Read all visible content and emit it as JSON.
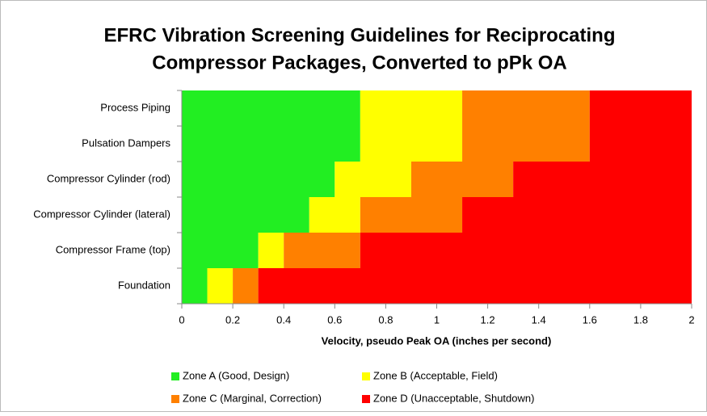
{
  "chart_data": {
    "type": "stacked-barh",
    "title": [
      "EFRC Vibration Screening Guidelines for Reciprocating",
      "Compressor Packages, Converted to pPk OA"
    ],
    "x_label": "Velocity, pseudo Peak OA (inches per second)",
    "categories": [
      "Process Piping",
      "Pulsation Dampers",
      "Compressor Cylinder (rod)",
      "Compressor Cylinder (lateral)",
      "Compressor Frame (top)",
      "Foundation"
    ],
    "series": [
      {
        "name": "Zone A (Good, Design)",
        "color": "#22ee22",
        "values": [
          0.7,
          0.7,
          0.6,
          0.5,
          0.3,
          0.1
        ]
      },
      {
        "name": "Zone B (Acceptable, Field)",
        "color": "#ffff00",
        "values": [
          0.4,
          0.4,
          0.3,
          0.2,
          0.1,
          0.1
        ]
      },
      {
        "name": "Zone C (Marginal, Correction)",
        "color": "#ff8000",
        "values": [
          0.5,
          0.5,
          0.4,
          0.4,
          0.3,
          0.1
        ]
      },
      {
        "name": "Zone D (Unacceptable, Shutdown)",
        "color": "#ff0000",
        "values": [
          0.4,
          0.4,
          0.7,
          0.9,
          1.3,
          1.7
        ]
      }
    ],
    "xlim": [
      0,
      2
    ],
    "xticks": [
      0,
      0.2,
      0.4,
      0.6,
      0.8,
      1,
      1.2,
      1.4,
      1.6,
      1.8,
      2
    ],
    "legend": "bottom"
  }
}
